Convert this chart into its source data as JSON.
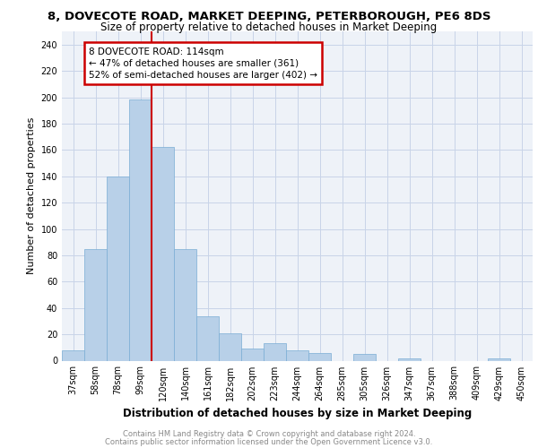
{
  "title1": "8, DOVECOTE ROAD, MARKET DEEPING, PETERBOROUGH, PE6 8DS",
  "title2": "Size of property relative to detached houses in Market Deeping",
  "xlabel": "Distribution of detached houses by size in Market Deeping",
  "ylabel": "Number of detached properties",
  "categories": [
    "37sqm",
    "58sqm",
    "78sqm",
    "99sqm",
    "120sqm",
    "140sqm",
    "161sqm",
    "182sqm",
    "202sqm",
    "223sqm",
    "244sqm",
    "264sqm",
    "285sqm",
    "305sqm",
    "326sqm",
    "347sqm",
    "367sqm",
    "388sqm",
    "409sqm",
    "429sqm",
    "450sqm"
  ],
  "values": [
    8,
    85,
    140,
    198,
    162,
    85,
    34,
    21,
    9,
    13,
    8,
    6,
    0,
    5,
    0,
    2,
    0,
    0,
    0,
    2,
    0
  ],
  "bar_color": "#b8d0e8",
  "bar_edge_color": "#7aadd4",
  "vline_x_index": 3.5,
  "vline_color": "#cc0000",
  "annotation_lines": [
    "8 DOVECOTE ROAD: 114sqm",
    "← 47% of detached houses are smaller (361)",
    "52% of semi-detached houses are larger (402) →"
  ],
  "annotation_box_color": "#cc0000",
  "ylim": [
    0,
    250
  ],
  "yticks": [
    0,
    20,
    40,
    60,
    80,
    100,
    120,
    140,
    160,
    180,
    200,
    220,
    240
  ],
  "footnote1": "Contains HM Land Registry data © Crown copyright and database right 2024.",
  "footnote2": "Contains public sector information licensed under the Open Government Licence v3.0.",
  "grid_color": "#c8d4e8",
  "bg_color": "#eef2f8",
  "title1_fontsize": 9.5,
  "title2_fontsize": 8.5,
  "ylabel_fontsize": 8,
  "xlabel_fontsize": 8.5,
  "tick_fontsize": 7,
  "annotation_fontsize": 7.5,
  "footnote_fontsize": 6
}
